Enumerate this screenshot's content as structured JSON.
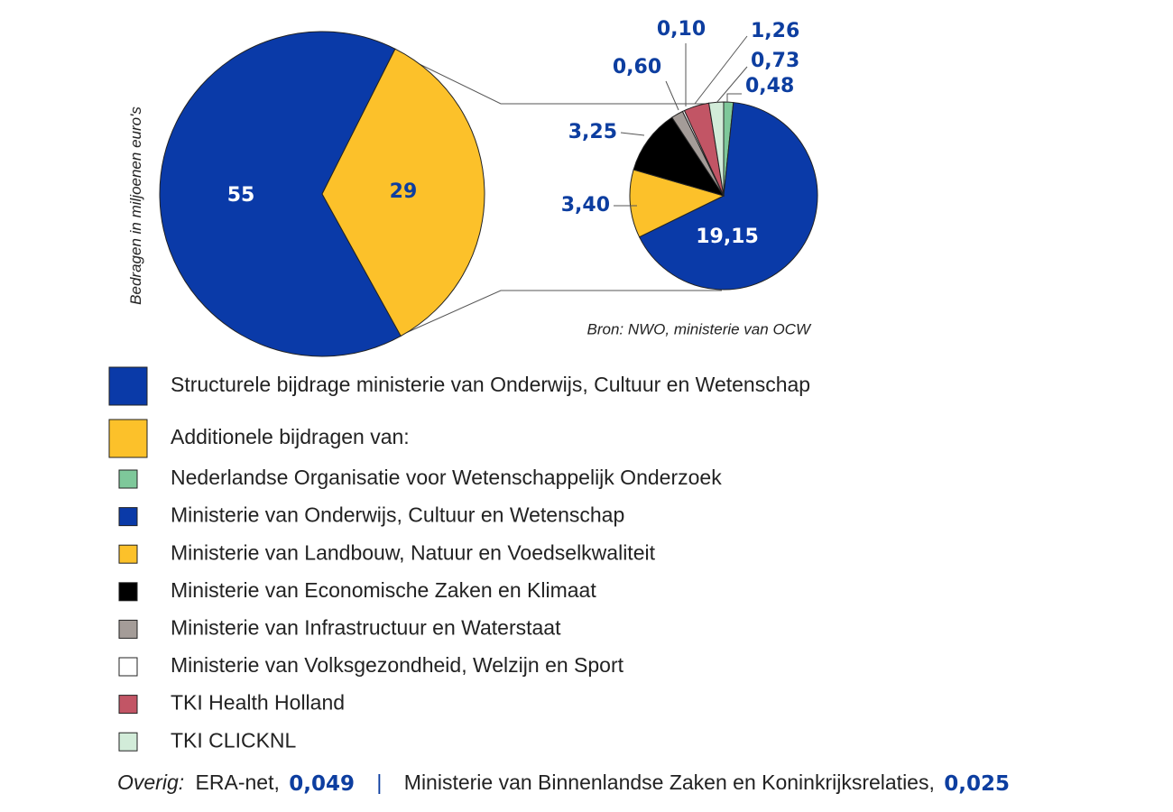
{
  "chart_data": [
    {
      "type": "pie",
      "axis_label": "Bedragen in miljoenen euro's",
      "categories": [
        "Structurele bijdrage ministerie van Onderwijs, Cultuur en Wetenschap",
        "Additionele bijdragen van:"
      ],
      "values": [
        55,
        29
      ],
      "colors": [
        "#0a3aa8",
        "#fcc12a"
      ]
    },
    {
      "type": "pie",
      "source": "Bron: NWO, ministerie van OCW",
      "categories": [
        "Nederlandse Organisatie voor Wetenschappelijk Onderzoek",
        "Ministerie van Onderwijs, Cultuur en Wetenschap",
        "Ministerie van Landbouw, Natuur en Voedselkwaliteit",
        "Ministerie van Economische Zaken en Klimaat",
        "Ministerie van Infrastructuur en Waterstaat",
        "Ministerie van Volksgezondheid, Welzijn en Sport",
        "TKI Health Holland",
        "TKI CLICKNL"
      ],
      "values": [
        0.48,
        19.15,
        3.4,
        3.25,
        0.6,
        0.1,
        1.26,
        0.73
      ],
      "value_labels": [
        "0,48",
        "19,15",
        "3,40",
        "3,25",
        "0,60",
        "0,10",
        "1,26",
        "0,73"
      ],
      "colors": [
        "#7ec89a",
        "#0a3aa8",
        "#fcc12a",
        "#000000",
        "#a49c98",
        "#ffffff",
        "#c25565",
        "#d2ecd9"
      ]
    }
  ],
  "footer": {
    "label": "Overig:",
    "separator": "|",
    "items": [
      {
        "name": "ERA-net,",
        "amount": "0,049"
      },
      {
        "name": "Ministerie van Binnenlandse Zaken en Koninkrijksrelaties,",
        "amount": "0,025"
      }
    ]
  }
}
